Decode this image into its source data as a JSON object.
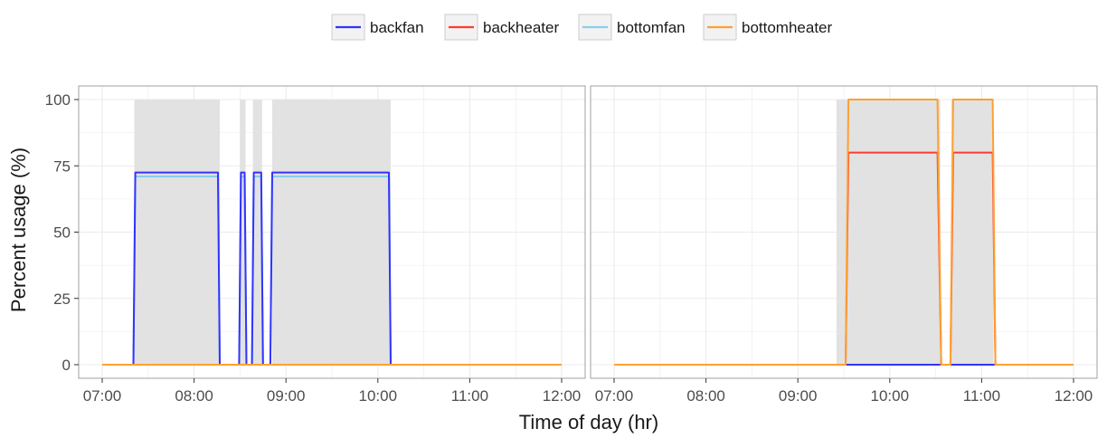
{
  "chart_data": {
    "type": "line",
    "xlabel": "Time of day (hr)",
    "ylabel": "Percent usage (%)",
    "x_unit": "hours",
    "xlim": [
      7.0,
      12.0
    ],
    "ylim": [
      0,
      100
    ],
    "x_ticks": [
      7,
      8,
      9,
      10,
      11,
      12
    ],
    "x_tick_labels": [
      "07:00",
      "08:00",
      "09:00",
      "10:00",
      "11:00",
      "12:00"
    ],
    "y_ticks": [
      0,
      25,
      50,
      75,
      100
    ],
    "y_tick_labels": [
      "0",
      "25",
      "50",
      "75",
      "100"
    ],
    "grid": true,
    "legend": {
      "position": "top",
      "entries": [
        "backfan",
        "backheater",
        "bottomfan",
        "bottomheater"
      ]
    },
    "colors": {
      "backfan": "#3333ff",
      "backheater": "#ff3b2f",
      "bottomfan": "#87ceeb",
      "bottomheater": "#ffa030",
      "shade": "#e2e2e2",
      "panel_border": "#a0a0a0",
      "grid": "#ebebeb"
    },
    "panels": [
      {
        "shaded_intervals": [
          [
            7.35,
            8.28
          ],
          [
            8.5,
            8.56
          ],
          [
            8.64,
            8.74
          ],
          [
            8.85,
            10.14
          ]
        ],
        "series": [
          {
            "name": "backfan",
            "x": [
              7.0,
              7.34,
              7.36,
              8.26,
              8.28,
              8.49,
              8.51,
              8.55,
              8.57,
              8.63,
              8.65,
              8.73,
              8.75,
              8.83,
              8.85,
              10.12,
              10.14,
              12.0
            ],
            "values": [
              0,
              0,
              72.5,
              72.5,
              0,
              0,
              72.5,
              72.5,
              0,
              0,
              72.5,
              72.5,
              0,
              0,
              72.5,
              72.5,
              0,
              0
            ]
          },
          {
            "name": "bottomfan",
            "x": [
              7.0,
              7.34,
              7.36,
              8.26,
              8.28,
              8.49,
              8.51,
              8.55,
              8.57,
              8.63,
              8.65,
              8.73,
              8.75,
              8.83,
              8.85,
              10.12,
              10.14,
              12.0
            ],
            "values": [
              0,
              0,
              71,
              71,
              0,
              0,
              71,
              71,
              0,
              0,
              71,
              71,
              0,
              0,
              71,
              71,
              0,
              0
            ]
          },
          {
            "name": "backheater",
            "x": [
              7.0,
              12.0
            ],
            "values": [
              0,
              0
            ]
          },
          {
            "name": "bottomheater",
            "x": [
              7.0,
              12.0
            ],
            "values": [
              0,
              0
            ]
          }
        ]
      },
      {
        "shaded_intervals": [
          [
            9.42,
            10.55
          ],
          [
            10.67,
            11.13
          ]
        ],
        "series": [
          {
            "name": "backfan",
            "x": [
              7.0,
              12.0
            ],
            "values": [
              0,
              0
            ]
          },
          {
            "name": "bottomfan",
            "x": [
              7.0,
              12.0
            ],
            "values": [
              0,
              0
            ]
          },
          {
            "name": "backheater",
            "x": [
              7.0,
              9.52,
              9.55,
              10.52,
              10.56,
              10.66,
              10.69,
              11.12,
              11.15,
              12.0
            ],
            "values": [
              0,
              0,
              80,
              80,
              0,
              0,
              80,
              80,
              0,
              0
            ]
          },
          {
            "name": "bottomheater",
            "x": [
              7.0,
              9.52,
              9.55,
              10.52,
              10.56,
              10.66,
              10.69,
              11.12,
              11.15,
              12.0
            ],
            "values": [
              0,
              0,
              100,
              100,
              0,
              0,
              100,
              100,
              0,
              0
            ]
          }
        ]
      }
    ]
  }
}
